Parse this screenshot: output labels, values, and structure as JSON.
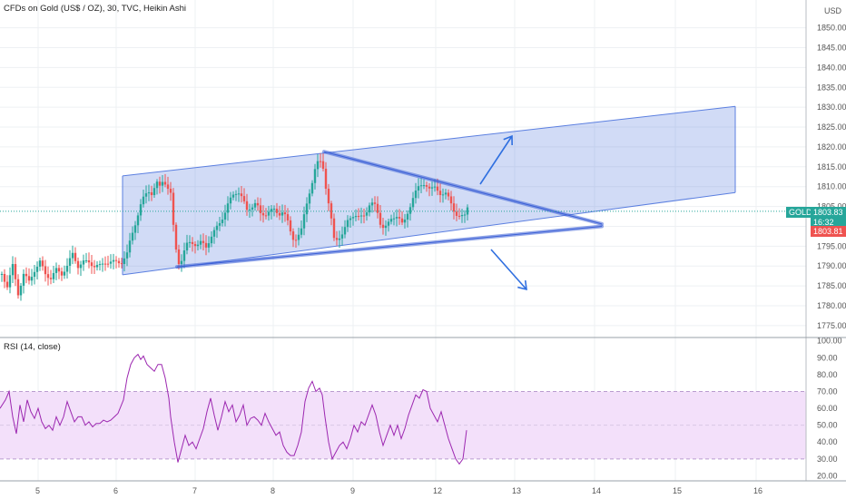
{
  "header": {
    "title": "CFDs on Gold (US$ / OZ), 30, TVC, Heikin Ashi",
    "currency": "USD"
  },
  "price_panel": {
    "symbol": "GOLD",
    "last_price": "1803.83",
    "countdown": "16:32",
    "open_price": "1803.81"
  },
  "rsi_panel": {
    "title": "RSI (14, close)"
  },
  "colors": {
    "up": "#26a69a",
    "down": "#ef5350",
    "channel": "#5b7fe0",
    "rsi_line": "#9c27b0",
    "rsi_band": "#f3e0fa"
  },
  "chart_data": [
    {
      "type": "candlestick",
      "title": "CFDs on Gold (US$ / OZ), 30, TVC, Heikin Ashi",
      "x_tick_labels": [
        "5",
        "6",
        "7",
        "8",
        "9",
        "12",
        "13",
        "14",
        "15",
        "16"
      ],
      "y_tick_labels": [
        "1775.00",
        "1780.00",
        "1785.00",
        "1790.00",
        "1795.00",
        "1800.00",
        "1805.00",
        "1810.00",
        "1815.00",
        "1820.00",
        "1825.00",
        "1830.00",
        "1835.00",
        "1840.00",
        "1845.00",
        "1850.00"
      ],
      "ylim": [
        1772,
        1857
      ],
      "close_path": [
        [
          0,
          1788
        ],
        [
          6,
          1785
        ],
        [
          12,
          1790
        ],
        [
          18,
          1783
        ],
        [
          24,
          1788
        ],
        [
          30,
          1786
        ],
        [
          36,
          1789
        ],
        [
          42,
          1791
        ],
        [
          48,
          1788
        ],
        [
          54,
          1787
        ],
        [
          60,
          1789
        ],
        [
          66,
          1788
        ],
        [
          72,
          1790
        ],
        [
          78,
          1793
        ],
        [
          84,
          1790
        ],
        [
          90,
          1791
        ],
        [
          96,
          1791
        ],
        [
          102,
          1790
        ],
        [
          108,
          1790
        ],
        [
          114,
          1791
        ],
        [
          120,
          1791
        ],
        [
          126,
          1791
        ],
        [
          132,
          1791
        ],
        [
          138,
          1793
        ],
        [
          142,
          1797
        ],
        [
          146,
          1800
        ],
        [
          150,
          1803
        ],
        [
          154,
          1806
        ],
        [
          158,
          1808
        ],
        [
          162,
          1809
        ],
        [
          166,
          1808
        ],
        [
          170,
          1811
        ],
        [
          174,
          1810
        ],
        [
          178,
          1812
        ],
        [
          182,
          1810
        ],
        [
          186,
          1808
        ],
        [
          188,
          1803
        ],
        [
          190,
          1797
        ],
        [
          193,
          1793
        ],
        [
          196,
          1790
        ],
        [
          200,
          1793
        ],
        [
          205,
          1796
        ],
        [
          210,
          1796
        ],
        [
          215,
          1795
        ],
        [
          220,
          1796
        ],
        [
          225,
          1795
        ],
        [
          230,
          1797
        ],
        [
          235,
          1799
        ],
        [
          240,
          1801
        ],
        [
          245,
          1803
        ],
        [
          250,
          1806
        ],
        [
          255,
          1808
        ],
        [
          260,
          1809
        ],
        [
          265,
          1807
        ],
        [
          270,
          1804
        ],
        [
          275,
          1805
        ],
        [
          280,
          1806
        ],
        [
          285,
          1803
        ],
        [
          290,
          1803
        ],
        [
          295,
          1804
        ],
        [
          300,
          1804
        ],
        [
          305,
          1803
        ],
        [
          310,
          1804
        ],
        [
          315,
          1801
        ],
        [
          320,
          1797
        ],
        [
          325,
          1797
        ],
        [
          330,
          1799
        ],
        [
          334,
          1804
        ],
        [
          338,
          1808
        ],
        [
          342,
          1811
        ],
        [
          346,
          1815
        ],
        [
          350,
          1817
        ],
        [
          354,
          1815
        ],
        [
          358,
          1808
        ],
        [
          362,
          1803
        ],
        [
          366,
          1797
        ],
        [
          370,
          1797
        ],
        [
          376,
          1798
        ],
        [
          382,
          1802
        ],
        [
          388,
          1803
        ],
        [
          394,
          1802
        ],
        [
          400,
          1803
        ],
        [
          406,
          1806
        ],
        [
          412,
          1805
        ],
        [
          418,
          1800
        ],
        [
          424,
          1800
        ],
        [
          430,
          1802
        ],
        [
          436,
          1803
        ],
        [
          442,
          1800
        ],
        [
          448,
          1804
        ],
        [
          454,
          1808
        ],
        [
          460,
          1810
        ],
        [
          466,
          1811
        ],
        [
          472,
          1809
        ],
        [
          478,
          1810
        ],
        [
          484,
          1808
        ],
        [
          490,
          1808
        ],
        [
          495,
          1806
        ],
        [
          500,
          1803
        ],
        [
          505,
          1802
        ],
        [
          510,
          1803
        ],
        [
          514,
          1806
        ]
      ],
      "rsi": {
        "title": "RSI (14, close)",
        "y_tick_labels": [
          "20.00",
          "30.00",
          "40.00",
          "50.00",
          "60.00",
          "70.00",
          "80.00",
          "90.00",
          "100.00"
        ],
        "ylim": [
          17,
          102
        ],
        "band": [
          30,
          70
        ],
        "path": [
          [
            0,
            60
          ],
          [
            6,
            65
          ],
          [
            10,
            70
          ],
          [
            14,
            55
          ],
          [
            18,
            45
          ],
          [
            22,
            62
          ],
          [
            26,
            52
          ],
          [
            30,
            65
          ],
          [
            34,
            58
          ],
          [
            38,
            54
          ],
          [
            42,
            60
          ],
          [
            46,
            52
          ],
          [
            50,
            48
          ],
          [
            54,
            50
          ],
          [
            58,
            47
          ],
          [
            62,
            55
          ],
          [
            66,
            50
          ],
          [
            70,
            55
          ],
          [
            74,
            64
          ],
          [
            78,
            58
          ],
          [
            82,
            52
          ],
          [
            86,
            55
          ],
          [
            90,
            55
          ],
          [
            94,
            50
          ],
          [
            98,
            52
          ],
          [
            102,
            49
          ],
          [
            106,
            51
          ],
          [
            110,
            51
          ],
          [
            114,
            53
          ],
          [
            118,
            52
          ],
          [
            122,
            53
          ],
          [
            126,
            55
          ],
          [
            130,
            57
          ],
          [
            136,
            65
          ],
          [
            140,
            78
          ],
          [
            144,
            86
          ],
          [
            148,
            90
          ],
          [
            152,
            92
          ],
          [
            155,
            89
          ],
          [
            158,
            91
          ],
          [
            162,
            86
          ],
          [
            166,
            84
          ],
          [
            170,
            82
          ],
          [
            174,
            86
          ],
          [
            178,
            86
          ],
          [
            182,
            78
          ],
          [
            186,
            66
          ],
          [
            188,
            55
          ],
          [
            192,
            40
          ],
          [
            196,
            28
          ],
          [
            200,
            36
          ],
          [
            204,
            44
          ],
          [
            208,
            38
          ],
          [
            212,
            40
          ],
          [
            216,
            36
          ],
          [
            220,
            42
          ],
          [
            224,
            48
          ],
          [
            228,
            58
          ],
          [
            232,
            66
          ],
          [
            236,
            56
          ],
          [
            240,
            47
          ],
          [
            244,
            55
          ],
          [
            248,
            64
          ],
          [
            252,
            58
          ],
          [
            256,
            62
          ],
          [
            260,
            52
          ],
          [
            264,
            56
          ],
          [
            268,
            62
          ],
          [
            272,
            50
          ],
          [
            276,
            54
          ],
          [
            280,
            55
          ],
          [
            284,
            53
          ],
          [
            288,
            50
          ],
          [
            292,
            57
          ],
          [
            296,
            52
          ],
          [
            300,
            48
          ],
          [
            304,
            44
          ],
          [
            308,
            46
          ],
          [
            312,
            38
          ],
          [
            316,
            34
          ],
          [
            320,
            32
          ],
          [
            324,
            32
          ],
          [
            328,
            38
          ],
          [
            332,
            46
          ],
          [
            336,
            64
          ],
          [
            340,
            72
          ],
          [
            344,
            76
          ],
          [
            348,
            70
          ],
          [
            352,
            72
          ],
          [
            355,
            68
          ],
          [
            358,
            55
          ],
          [
            362,
            40
          ],
          [
            366,
            30
          ],
          [
            370,
            34
          ],
          [
            374,
            38
          ],
          [
            378,
            40
          ],
          [
            382,
            36
          ],
          [
            386,
            42
          ],
          [
            390,
            50
          ],
          [
            394,
            46
          ],
          [
            398,
            52
          ],
          [
            402,
            50
          ],
          [
            406,
            56
          ],
          [
            410,
            62
          ],
          [
            414,
            56
          ],
          [
            418,
            46
          ],
          [
            422,
            38
          ],
          [
            426,
            44
          ],
          [
            430,
            50
          ],
          [
            434,
            44
          ],
          [
            438,
            50
          ],
          [
            442,
            42
          ],
          [
            446,
            48
          ],
          [
            450,
            56
          ],
          [
            454,
            62
          ],
          [
            458,
            68
          ],
          [
            462,
            66
          ],
          [
            466,
            71
          ],
          [
            470,
            70
          ],
          [
            474,
            60
          ],
          [
            478,
            56
          ],
          [
            482,
            52
          ],
          [
            486,
            58
          ],
          [
            490,
            50
          ],
          [
            494,
            42
          ],
          [
            498,
            36
          ],
          [
            502,
            30
          ],
          [
            506,
            27
          ],
          [
            510,
            30
          ],
          [
            514,
            47
          ]
        ]
      }
    }
  ]
}
